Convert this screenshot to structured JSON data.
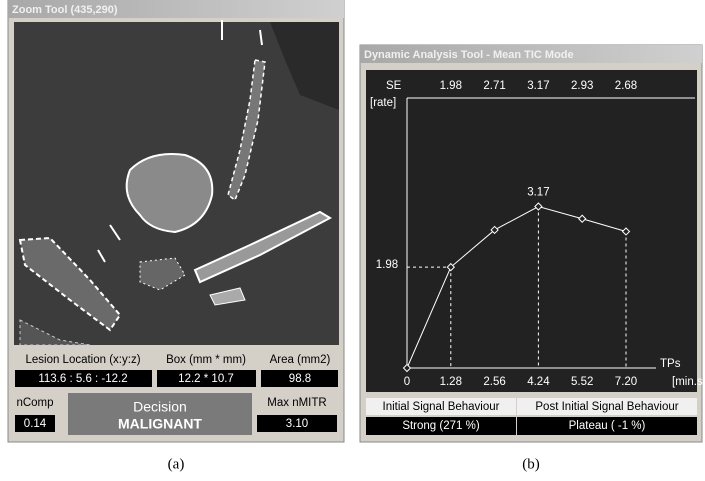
{
  "zoom_tool": {
    "title": "Zoom Tool (435,290)",
    "headers": [
      "Lesion Location (x:y:z)",
      "Box (mm * mm)",
      "Area (mm2)"
    ],
    "values": [
      "113.6 : 5.6 : -12.2",
      "12.2 * 10.7",
      "98.8"
    ],
    "ncomp_label": "nComp",
    "ncomp_value": "0.14",
    "decision_label": "Decision",
    "decision_value": "MALIGNANT",
    "max_label": "Max nMITR",
    "max_value": "3.10"
  },
  "chart_data": {
    "type": "line",
    "title": "Dynamic Analysis Tool - Mean TIC Mode",
    "se_label": "SE",
    "y_label": "[rate]",
    "x_label": "TPs",
    "x_unit": "[min.s]",
    "categories": [
      "0",
      "1.28",
      "2.56",
      "4.24",
      "5.52",
      "7.20"
    ],
    "values": [
      0,
      1.98,
      2.71,
      3.17,
      2.93,
      2.68
    ],
    "ylim": [
      0,
      5.3
    ],
    "color": "#ffffff"
  },
  "table": {
    "headers": [
      "Initial Signal Behaviour",
      "Post Initial Signal Behaviour"
    ],
    "values": [
      "Strong (271 %)",
      "Plateau ( -1 %)"
    ]
  },
  "captions": [
    "(a)",
    "(b)"
  ]
}
